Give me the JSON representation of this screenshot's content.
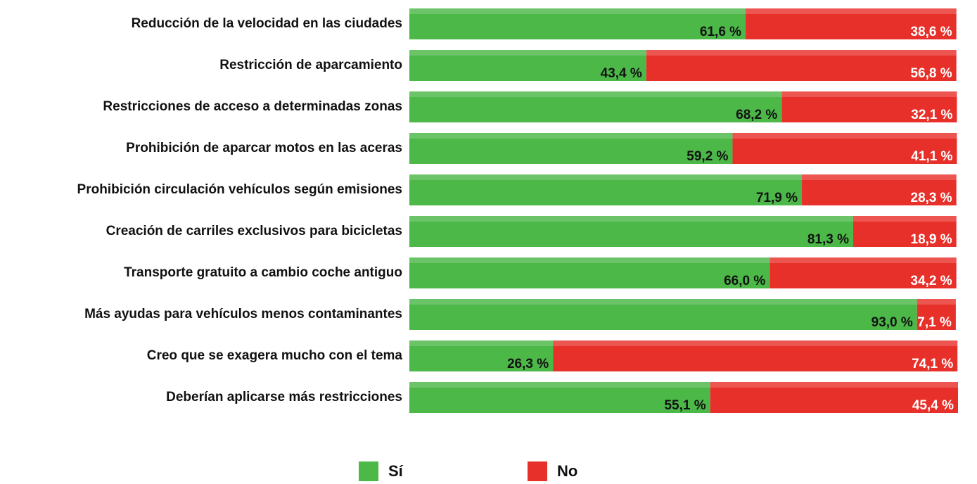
{
  "chart_data": {
    "type": "stacked-bar-horizontal",
    "categories": [
      "Reducción de la velocidad en las ciudades",
      "Restricción de aparcamiento",
      "Restricciones de acceso a determinadas zonas",
      "Prohibición de aparcar motos en las aceras",
      "Prohibición circulación vehículos según emisiones",
      "Creación de carriles exclusivos para bicicletas",
      "Transporte gratuito a cambio coche antiguo",
      "Más ayudas para vehículos menos contaminantes",
      "Creo que se exagera mucho con el tema",
      "Deberían aplicarse más restricciones"
    ],
    "series": [
      {
        "name": "Sí",
        "color": "#4cb848",
        "values": [
          61.6,
          43.4,
          68.2,
          59.2,
          71.9,
          81.3,
          66.0,
          93.0,
          26.3,
          55.1
        ],
        "value_labels": [
          "61,6 %",
          "43,4 %",
          "68,2 %",
          "59,2 %",
          "71,9 %",
          "81,3 %",
          "66,0 %",
          "93,0 %",
          "26,3 %",
          "55,1 %"
        ]
      },
      {
        "name": "No",
        "color": "#e8302a",
        "values": [
          38.6,
          56.8,
          32.1,
          41.1,
          28.3,
          18.9,
          34.2,
          7.1,
          74.1,
          45.4
        ],
        "value_labels": [
          "38,6 %",
          "56,8 %",
          "32,1 %",
          "41,1 %",
          "28,3 %",
          "18,9 %",
          "34,2 %",
          "7,1 %",
          "74,1 %",
          "45,4 %"
        ]
      }
    ]
  }
}
